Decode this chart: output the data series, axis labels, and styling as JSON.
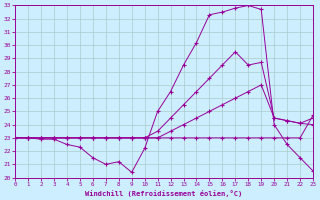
{
  "xlabel": "Windchill (Refroidissement éolien,°C)",
  "xlim": [
    0,
    23
  ],
  "ylim": [
    20,
    33
  ],
  "xticks": [
    0,
    1,
    2,
    3,
    4,
    5,
    6,
    7,
    8,
    9,
    10,
    11,
    12,
    13,
    14,
    15,
    16,
    17,
    18,
    19,
    20,
    21,
    22,
    23
  ],
  "yticks": [
    20,
    21,
    22,
    23,
    24,
    25,
    26,
    27,
    28,
    29,
    30,
    31,
    32,
    33
  ],
  "bg_color": "#cceeff",
  "line_color": "#990099",
  "grid_color": "#aacccc",
  "curve1_x": [
    0,
    1,
    2,
    3,
    4,
    5,
    6,
    7,
    8,
    9,
    10,
    11,
    12,
    13,
    14,
    15,
    16,
    17,
    18,
    19,
    20,
    21,
    22,
    23
  ],
  "curve1_y": [
    23.0,
    23.0,
    22.9,
    22.9,
    22.5,
    22.3,
    21.5,
    21.0,
    21.2,
    20.4,
    22.2,
    25.0,
    26.5,
    28.5,
    30.2,
    32.3,
    32.5,
    32.8,
    33.0,
    32.7,
    24.0,
    22.5,
    21.5,
    20.5
  ],
  "curve2_x": [
    0,
    1,
    2,
    3,
    4,
    5,
    6,
    7,
    8,
    9,
    10,
    11,
    12,
    13,
    14,
    15,
    16,
    17,
    18,
    19,
    20,
    21,
    22,
    23
  ],
  "curve2_y": [
    23.0,
    23.0,
    23.0,
    23.0,
    23.0,
    23.0,
    23.0,
    23.0,
    23.0,
    23.0,
    23.0,
    23.5,
    24.5,
    25.5,
    26.5,
    27.5,
    28.5,
    29.5,
    28.5,
    28.7,
    24.5,
    24.3,
    24.1,
    24.0
  ],
  "curve3_x": [
    0,
    1,
    2,
    3,
    4,
    5,
    6,
    7,
    8,
    9,
    10,
    11,
    12,
    13,
    14,
    15,
    16,
    17,
    18,
    19,
    20,
    21,
    22,
    23
  ],
  "curve3_y": [
    23.0,
    23.0,
    23.0,
    23.0,
    23.0,
    23.0,
    23.0,
    23.0,
    23.0,
    23.0,
    23.0,
    23.0,
    23.5,
    24.0,
    24.5,
    25.0,
    25.5,
    26.0,
    26.5,
    27.0,
    24.5,
    24.3,
    24.1,
    24.5
  ],
  "curve4_x": [
    0,
    1,
    2,
    3,
    4,
    5,
    6,
    7,
    8,
    9,
    10,
    11,
    12,
    13,
    14,
    15,
    16,
    17,
    18,
    19,
    20,
    21,
    22,
    23
  ],
  "curve4_y": [
    23.0,
    23.0,
    23.0,
    23.0,
    23.0,
    23.0,
    23.0,
    23.0,
    23.0,
    23.0,
    23.0,
    23.0,
    23.0,
    23.0,
    23.0,
    23.0,
    23.0,
    23.0,
    23.0,
    23.0,
    23.0,
    23.0,
    23.0,
    24.7
  ]
}
